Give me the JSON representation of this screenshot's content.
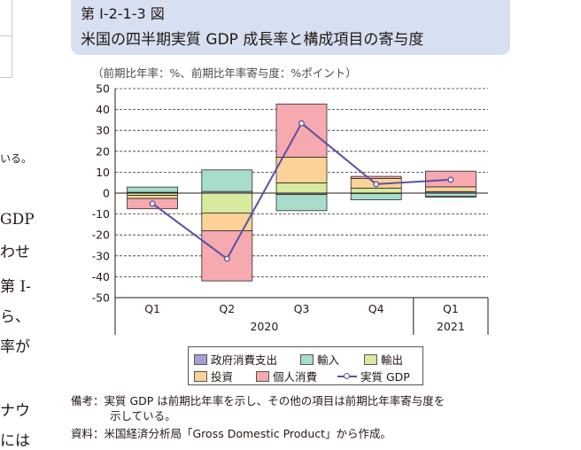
{
  "figure": {
    "number": "第 I-2-1-3 図",
    "title": "米国の四半期実質 GDP 成長率と構成項目の寄与度",
    "unit_note": "（前期比年率：%、前期比年率寄与度：%ポイント）"
  },
  "background_text": [
    "いる。",
    "GDP",
    "わせ",
    "第 I-",
    "ら、",
    "率が",
    "ナウ",
    "には"
  ],
  "notes": {
    "line1": "備考：実質 GDP は前期比年率を示し、その他の項目は前期比年率寄与度を",
    "line2": "示している。",
    "line3": "資料：米国経済分析局「Gross Domestic Product」から作成。"
  },
  "chart_data": {
    "type": "bar",
    "stacked": true,
    "categories": [
      "Q1",
      "Q2",
      "Q3",
      "Q4",
      "Q1"
    ],
    "year_labels": [
      "2020",
      "2021"
    ],
    "year_groups": [
      [
        0,
        3
      ],
      [
        4,
        4
      ]
    ],
    "ylim": [
      -50,
      50
    ],
    "yticks": [
      50,
      40,
      30,
      20,
      10,
      0,
      -10,
      -20,
      -30,
      -40,
      -50
    ],
    "grid": "dashed",
    "series": [
      {
        "name": "政府消費支出",
        "color": "#a79fd2",
        "values": [
          0.4,
          0.8,
          -0.7,
          -0.2,
          0.7
        ]
      },
      {
        "name": "輸入",
        "color": "#a8dccb",
        "values": [
          2.5,
          10.3,
          -7.7,
          -3.0,
          -1.6
        ]
      },
      {
        "name": "輸出",
        "color": "#d7ea9e",
        "values": [
          -1.1,
          -9.5,
          4.9,
          2.4,
          -0.3
        ]
      },
      {
        "name": "投資",
        "color": "#fbd298",
        "values": [
          -1.5,
          -8.5,
          12.3,
          4.6,
          2.3
        ]
      },
      {
        "name": "個人消費",
        "color": "#f6a9ae",
        "values": [
          -4.9,
          -24.0,
          25.4,
          1.0,
          7.5
        ]
      }
    ],
    "line": {
      "name": "実質 GDP",
      "color": "#5b4fa5",
      "values": [
        -5.0,
        -31.4,
        33.4,
        4.3,
        6.4
      ]
    },
    "legend_position": "bottom"
  }
}
